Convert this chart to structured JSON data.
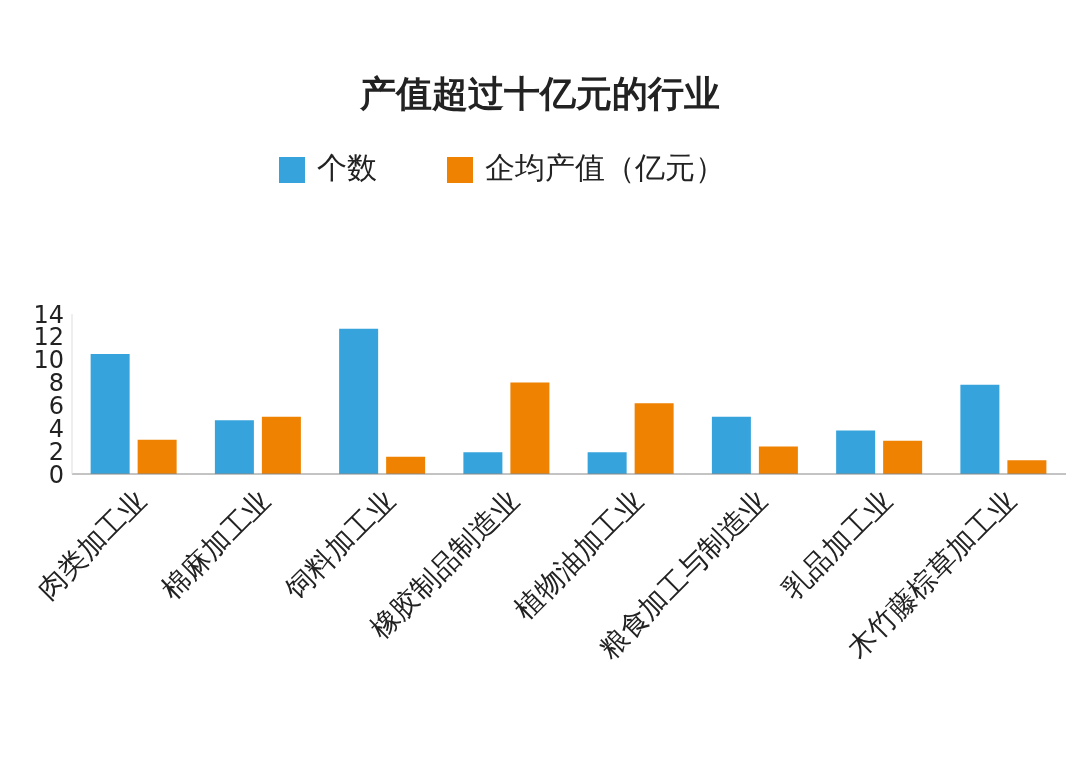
{
  "chart_data": {
    "type": "bar",
    "title": "产值超过十亿元的行业",
    "categories": [
      "肉类加工业",
      "棉麻加工业",
      "饲料加工业",
      "橡胶制品制造业",
      "植物油加工业",
      "粮食加工与制造业",
      "乳品加工业",
      "木竹藤棕草加工业"
    ],
    "series": [
      {
        "name": "个数",
        "color": "#36a3dc",
        "values": [
          10.5,
          4.7,
          12.7,
          1.9,
          1.9,
          5.0,
          3.8,
          7.8
        ]
      },
      {
        "name": "企均产值（亿元）",
        "color": "#ef8200",
        "values": [
          3.0,
          5.0,
          1.5,
          8.0,
          6.2,
          2.4,
          2.9,
          1.2
        ]
      }
    ],
    "ylim": [
      0,
      14
    ],
    "yticks": [
      0,
      2,
      4,
      6,
      8,
      10,
      12,
      14
    ],
    "grid": false,
    "legend": "top"
  }
}
